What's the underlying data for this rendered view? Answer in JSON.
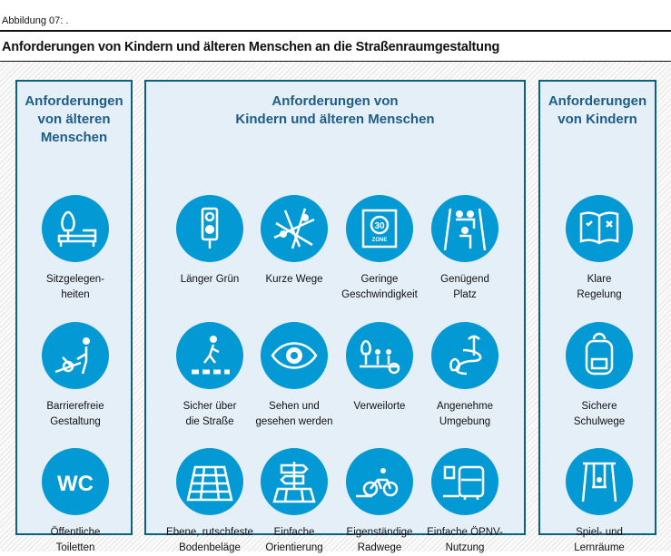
{
  "figure_label": "Abbildung 07: .",
  "title": "Anforderungen von Kindern und älteren Menschen an die Straßenraumgestaltung",
  "colors": {
    "circle": "#0399d4",
    "border": "#0b6184",
    "panel": "#e5eff8",
    "heading": "#1d5d86"
  },
  "panels": [
    {
      "heading": [
        "Anforderungen",
        "von älteren",
        "Menschen"
      ],
      "items": [
        {
          "label": [
            "Sitzgelegen-",
            "heiten"
          ],
          "icon": "bench-tree-icon"
        },
        {
          "label": [
            "Barrierefreie",
            "Gestaltung"
          ],
          "icon": "wheelchair-ramp-icon"
        },
        {
          "label": [
            "Öffentliche",
            "Toiletten"
          ],
          "icon": "wc-icon"
        }
      ]
    },
    {
      "heading": [
        "Anforderungen von",
        "Kindern und älteren Menschen"
      ],
      "items": [
        {
          "label": [
            "Länger Grün"
          ],
          "icon": "traffic-light-icon"
        },
        {
          "label": [
            "Kurze Wege"
          ],
          "icon": "map-pins-icon"
        },
        {
          "label": [
            "Geringe",
            "Geschwindigkeit"
          ],
          "icon": "zone-30-sign-icon",
          "sign_text": "30",
          "sign_sub": "ZONE"
        },
        {
          "label": [
            "Genügend",
            "Platz"
          ],
          "icon": "people-sidewalk-icon"
        },
        {
          "label": [
            "Sicher über",
            "die Straße"
          ],
          "icon": "crosswalk-icon"
        },
        {
          "label": [
            "Sehen und",
            "gesehen werden"
          ],
          "icon": "eye-icon"
        },
        {
          "label": [
            "Verweilorte"
          ],
          "icon": "people-sitting-icon"
        },
        {
          "label": [
            "Angenehme",
            "Umgebung"
          ],
          "icon": "path-landscape-icon"
        },
        {
          "label": [
            "Ebene, rutschfeste",
            "Bodenbeläge"
          ],
          "icon": "paving-icon"
        },
        {
          "label": [
            "Einfache",
            "Orientierung"
          ],
          "icon": "signpost-icon"
        },
        {
          "label": [
            "Eigenständige",
            "Radwege"
          ],
          "icon": "bicycle-icon"
        },
        {
          "label": [
            "Einfache ÖPNV-",
            "Nutzung"
          ],
          "icon": "bus-icon"
        }
      ]
    },
    {
      "heading": [
        "Anforderungen",
        "von Kindern"
      ],
      "items": [
        {
          "label": [
            "Klare",
            "Regelung"
          ],
          "icon": "book-icon"
        },
        {
          "label": [
            "Sichere",
            "Schulwege"
          ],
          "icon": "backpack-icon"
        },
        {
          "label": [
            "Spiel- und",
            "Lernräume"
          ],
          "icon": "swing-icon"
        }
      ]
    }
  ]
}
